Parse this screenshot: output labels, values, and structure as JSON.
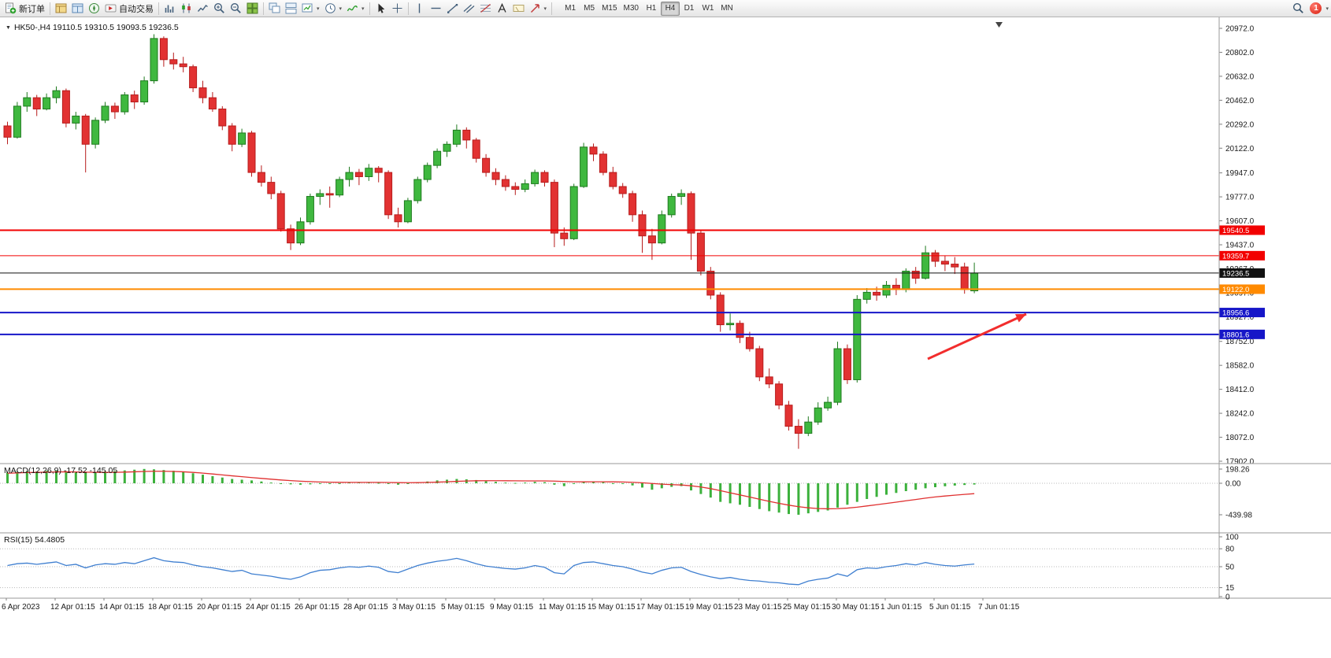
{
  "toolbar": {
    "items": [
      {
        "name": "new-order-button",
        "icon": "new-order",
        "label": "新订单"
      },
      {
        "sep": true
      },
      {
        "name": "market-watch-button",
        "icon": "market-watch"
      },
      {
        "name": "data-window-button",
        "icon": "data-window"
      },
      {
        "name": "navigator-button",
        "icon": "navigator"
      },
      {
        "name": "auto-trading-button",
        "icon": "auto-trading",
        "label": "自动交易"
      },
      {
        "sep": true
      },
      {
        "name": "bar-chart-button",
        "icon": "bar-chart"
      },
      {
        "name": "candlestick-chart-button",
        "icon": "candle-chart"
      },
      {
        "name": "line-chart-button",
        "icon": "line-chart"
      },
      {
        "name": "zoom-in-button",
        "icon": "zoom-in"
      },
      {
        "name": "zoom-out-button",
        "icon": "zoom-out"
      },
      {
        "name": "tile-windows-button",
        "icon": "tile-windows"
      },
      {
        "sep": true
      },
      {
        "name": "cascade-windows-button",
        "icon": "cascade"
      },
      {
        "name": "arrange-windows-button",
        "icon": "arrange"
      },
      {
        "name": "new-chart-button",
        "icon": "new-chart",
        "caret": true
      },
      {
        "name": "period-button",
        "icon": "clock",
        "caret": true
      },
      {
        "name": "indicators-button",
        "icon": "indicators",
        "caret": true
      },
      {
        "sep": true
      },
      {
        "name": "cursor-button",
        "icon": "cursor"
      },
      {
        "name": "crosshair-button",
        "icon": "crosshair"
      },
      {
        "sep": true
      },
      {
        "name": "vertical-line-button",
        "icon": "vertical-line"
      },
      {
        "name": "horizontal-line-button",
        "icon": "horizontal-line"
      },
      {
        "name": "trendline-button",
        "icon": "trendline"
      },
      {
        "name": "channel-button",
        "icon": "channel"
      },
      {
        "name": "fibonacci-button",
        "icon": "fibonacci"
      },
      {
        "name": "text-button",
        "icon": "text"
      },
      {
        "name": "text-label-button",
        "icon": "text-label"
      },
      {
        "name": "arrows-button",
        "icon": "arrow-tool",
        "caret": true
      },
      {
        "sep": true
      }
    ],
    "timeframes": [
      "M1",
      "M5",
      "M15",
      "M30",
      "H1",
      "H4",
      "D1",
      "W1",
      "MN"
    ],
    "active_timeframe": "H4",
    "notification_count": "1"
  },
  "chart": {
    "marker_glyph": "▼",
    "symbol_header": "HK50-,H4 19110.5 19310.5 19093.5 19236.5"
  },
  "indicators": {
    "macd": {
      "label": "MACD(12,26,9) -17.52 -145.05"
    },
    "rsi": {
      "label": "RSI(15) 54.4805"
    }
  },
  "chart_data": [
    {
      "type": "candlestick",
      "symbol": "HK50-",
      "timeframe": "H4",
      "last_ohlc": {
        "open": 19110.5,
        "high": 19310.5,
        "low": 19093.5,
        "close": 19236.5
      },
      "y_range": [
        17902,
        20972
      ],
      "y_ticks": [
        "20972.0",
        "20802.0",
        "20632.0",
        "20462.0",
        "20292.0",
        "20122.0",
        "19947.0",
        "19777.0",
        "19607.0",
        "19437.0",
        "19267.0",
        "19097.0",
        "18927.0",
        "18752.0",
        "18582.0",
        "18412.0",
        "18242.0",
        "18072.0",
        "17902.0"
      ],
      "x_labels": [
        "6 Apr 2023",
        "12 Apr 01:15",
        "14 Apr 01:15",
        "18 Apr 01:15",
        "20 Apr 01:15",
        "24 Apr 01:15",
        "26 Apr 01:15",
        "28 Apr 01:15",
        "3 May 01:15",
        "5 May 01:15",
        "9 May 01:15",
        "11 May 01:15",
        "15 May 01:15",
        "17 May 01:15",
        "19 May 01:15",
        "23 May 01:15",
        "25 May 01:15",
        "30 May 01:15",
        "1 Jun 01:15",
        "5 Jun 01:15",
        "7 Jun 01:15"
      ],
      "levels": [
        {
          "label": "19540.5",
          "price": 19540.5,
          "color": "#f20000",
          "width": 2
        },
        {
          "label": "19359.7",
          "price": 19359.7,
          "color": "#f20000",
          "width": 1
        },
        {
          "label": "19236.5",
          "price": 19236.5,
          "color": "#111111",
          "width": 1,
          "current": true
        },
        {
          "label": "19122.0",
          "price": 19122.0,
          "color": "#ff8a00",
          "width": 2
        },
        {
          "label": "18956.6",
          "price": 18956.6,
          "color": "#1616c8",
          "width": 2
        },
        {
          "label": "18801.6",
          "price": 18801.6,
          "color": "#1616c8",
          "width": 2
        }
      ],
      "arrow": {
        "from": [
          1178,
          434
        ],
        "to": [
          1303,
          377
        ],
        "color": "#f22d2d"
      },
      "ohlc": [
        [
          20280,
          20310,
          20150,
          20200
        ],
        [
          20200,
          20450,
          20190,
          20420
        ],
        [
          20420,
          20520,
          20380,
          20480
        ],
        [
          20480,
          20500,
          20350,
          20400
        ],
        [
          20400,
          20510,
          20390,
          20480
        ],
        [
          20480,
          20560,
          20440,
          20530
        ],
        [
          20530,
          20545,
          20270,
          20300
        ],
        [
          20300,
          20380,
          20255,
          20350
        ],
        [
          20350,
          20365,
          19950,
          20150
        ],
        [
          20150,
          20340,
          20120,
          20320
        ],
        [
          20320,
          20450,
          20300,
          20420
        ],
        [
          20420,
          20445,
          20330,
          20380
        ],
        [
          20380,
          20520,
          20360,
          20500
        ],
        [
          20500,
          20530,
          20400,
          20450
        ],
        [
          20450,
          20630,
          20430,
          20600
        ],
        [
          20600,
          20930,
          20580,
          20900
        ],
        [
          20900,
          20915,
          20700,
          20750
        ],
        [
          20750,
          20800,
          20680,
          20720
        ],
        [
          20720,
          20770,
          20660,
          20700
        ],
        [
          20700,
          20715,
          20520,
          20550
        ],
        [
          20550,
          20600,
          20440,
          20480
        ],
        [
          20480,
          20520,
          20380,
          20400
        ],
        [
          20400,
          20420,
          20250,
          20280
        ],
        [
          20280,
          20300,
          20100,
          20150
        ],
        [
          20150,
          20260,
          20130,
          20230
        ],
        [
          20230,
          20245,
          19920,
          19950
        ],
        [
          19950,
          20000,
          19850,
          19880
        ],
        [
          19880,
          19920,
          19760,
          19800
        ],
        [
          19800,
          19820,
          19530,
          19550
        ],
        [
          19550,
          19580,
          19400,
          19450
        ],
        [
          19450,
          19630,
          19435,
          19600
        ],
        [
          19600,
          19800,
          19580,
          19780
        ],
        [
          19780,
          19830,
          19720,
          19800
        ],
        [
          19800,
          19850,
          19700,
          19790
        ],
        [
          19790,
          19920,
          19775,
          19900
        ],
        [
          19900,
          19990,
          19850,
          19950
        ],
        [
          19950,
          19975,
          19860,
          19920
        ],
        [
          19920,
          20010,
          19890,
          19980
        ],
        [
          19980,
          19995,
          19880,
          19950
        ],
        [
          19950,
          19965,
          19620,
          19650
        ],
        [
          19650,
          19700,
          19560,
          19600
        ],
        [
          19600,
          19770,
          19590,
          19750
        ],
        [
          19750,
          19920,
          19730,
          19900
        ],
        [
          19900,
          20020,
          19880,
          20000
        ],
        [
          20000,
          20120,
          19980,
          20100
        ],
        [
          20100,
          20170,
          20060,
          20150
        ],
        [
          20150,
          20290,
          20130,
          20250
        ],
        [
          20250,
          20270,
          20120,
          20180
        ],
        [
          20180,
          20195,
          20020,
          20050
        ],
        [
          20050,
          20080,
          19920,
          19950
        ],
        [
          19950,
          19980,
          19860,
          19900
        ],
        [
          19900,
          19930,
          19820,
          19850
        ],
        [
          19850,
          19880,
          19790,
          19830
        ],
        [
          19830,
          19900,
          19810,
          19870
        ],
        [
          19870,
          19970,
          19850,
          19950
        ],
        [
          19950,
          19965,
          19850,
          19880
        ],
        [
          19880,
          19900,
          19420,
          19520
        ],
        [
          19520,
          19560,
          19430,
          19480
        ],
        [
          19480,
          19870,
          19470,
          19850
        ],
        [
          19850,
          20160,
          19840,
          20130
        ],
        [
          20130,
          20155,
          20030,
          20080
        ],
        [
          20080,
          20100,
          19930,
          19950
        ],
        [
          19950,
          19990,
          19830,
          19850
        ],
        [
          19850,
          19875,
          19770,
          19800
        ],
        [
          19800,
          19820,
          19600,
          19650
        ],
        [
          19650,
          19680,
          19380,
          19500
        ],
        [
          19500,
          19550,
          19330,
          19450
        ],
        [
          19450,
          19680,
          19440,
          19650
        ],
        [
          19650,
          19800,
          19630,
          19780
        ],
        [
          19780,
          19830,
          19720,
          19800
        ],
        [
          19800,
          19815,
          19330,
          19520
        ],
        [
          19520,
          19540,
          19220,
          19250
        ],
        [
          19250,
          19280,
          19050,
          19080
        ],
        [
          19080,
          19100,
          18820,
          18870
        ],
        [
          18870,
          18950,
          18830,
          18880
        ],
        [
          18880,
          18900,
          18740,
          18780
        ],
        [
          18780,
          18820,
          18680,
          18700
        ],
        [
          18700,
          18720,
          18470,
          18500
        ],
        [
          18500,
          18560,
          18420,
          18450
        ],
        [
          18450,
          18470,
          18270,
          18300
        ],
        [
          18300,
          18330,
          18120,
          18150
        ],
        [
          18150,
          18200,
          17990,
          18100
        ],
        [
          18100,
          18220,
          18080,
          18180
        ],
        [
          18180,
          18320,
          18160,
          18280
        ],
        [
          18280,
          18360,
          18260,
          18320
        ],
        [
          18320,
          18750,
          18300,
          18700
        ],
        [
          18700,
          18730,
          18450,
          18480
        ],
        [
          18480,
          19080,
          18460,
          19050
        ],
        [
          19050,
          19130,
          19020,
          19100
        ],
        [
          19100,
          19140,
          19040,
          19080
        ],
        [
          19080,
          19180,
          19060,
          19150
        ],
        [
          19150,
          19200,
          19080,
          19120
        ],
        [
          19120,
          19270,
          19100,
          19250
        ],
        [
          19250,
          19280,
          19160,
          19200
        ],
        [
          19200,
          19430,
          19190,
          19380
        ],
        [
          19380,
          19400,
          19280,
          19320
        ],
        [
          19320,
          19360,
          19250,
          19300
        ],
        [
          19300,
          19350,
          19230,
          19280
        ],
        [
          19280,
          19310,
          19090,
          19120
        ],
        [
          19110.5,
          19310.5,
          19093.5,
          19236.5
        ]
      ]
    },
    {
      "type": "bar",
      "name": "MACD(12,26,9)",
      "current_values": [
        "-17.52",
        "-145.05"
      ],
      "y_labels": [
        {
          "text": "198.26",
          "value": 198.26
        },
        {
          "text": "0.00",
          "value": 0
        },
        {
          "text": "-439.98",
          "value": -439.98
        }
      ],
      "histogram": [
        150,
        160,
        170,
        165,
        175,
        180,
        170,
        160,
        150,
        155,
        165,
        170,
        180,
        190,
        200,
        195,
        185,
        175,
        160,
        140,
        120,
        100,
        80,
        60,
        50,
        40,
        25,
        10,
        -5,
        -15,
        -20,
        -15,
        -10,
        -5,
        0,
        10,
        15,
        10,
        5,
        -10,
        -20,
        -5,
        10,
        25,
        40,
        50,
        60,
        55,
        45,
        30,
        20,
        10,
        5,
        10,
        20,
        15,
        -20,
        -40,
        -10,
        20,
        25,
        15,
        0,
        -10,
        -30,
        -60,
        -90,
        -70,
        -50,
        -40,
        -100,
        -150,
        -200,
        -260,
        -280,
        -300,
        -330,
        -360,
        -390,
        -410,
        -430,
        -440,
        -420,
        -400,
        -380,
        -340,
        -300,
        -260,
        -220,
        -190,
        -160,
        -135,
        -110,
        -90,
        -70,
        -55,
        -42,
        -32,
        -24,
        -17.52
      ],
      "signal": [
        140,
        145,
        150,
        152,
        155,
        158,
        160,
        158,
        155,
        153,
        152,
        153,
        156,
        160,
        165,
        168,
        168,
        165,
        160,
        152,
        142,
        130,
        117,
        104,
        92,
        80,
        68,
        57,
        46,
        37,
        29,
        23,
        18,
        15,
        13,
        12,
        12,
        12,
        12,
        11,
        9,
        8,
        9,
        12,
        16,
        21,
        27,
        32,
        35,
        36,
        36,
        35,
        34,
        33,
        33,
        33,
        30,
        25,
        21,
        20,
        21,
        21,
        20,
        18,
        14,
        7,
        -3,
        -12,
        -19,
        -24,
        -35,
        -52,
        -75,
        -103,
        -133,
        -163,
        -193,
        -223,
        -253,
        -281,
        -306,
        -327,
        -343,
        -353,
        -357,
        -355,
        -347,
        -334,
        -317,
        -300,
        -282,
        -264,
        -245,
        -227,
        -208,
        -191,
        -178,
        -166,
        -155,
        -145.05
      ]
    },
    {
      "type": "line",
      "name": "RSI(15)",
      "current_value": 54.4805,
      "level_lines": [
        80,
        50,
        15
      ],
      "y_labels": [
        {
          "text": "100",
          "value": 100
        },
        {
          "text": "80",
          "value": 80
        },
        {
          "text": "50",
          "value": 50
        },
        {
          "text": "15",
          "value": 15
        },
        {
          "text": "0",
          "value": 0
        }
      ],
      "values": [
        52,
        55,
        56,
        54,
        56,
        58,
        52,
        54,
        48,
        53,
        55,
        54,
        57,
        55,
        60,
        65,
        60,
        58,
        57,
        53,
        50,
        48,
        45,
        42,
        44,
        38,
        36,
        34,
        31,
        29,
        33,
        40,
        44,
        45,
        48,
        50,
        49,
        51,
        49,
        42,
        40,
        46,
        52,
        56,
        59,
        61,
        64,
        60,
        55,
        51,
        49,
        47,
        46,
        48,
        52,
        49,
        40,
        38,
        52,
        57,
        58,
        55,
        52,
        50,
        46,
        41,
        38,
        44,
        48,
        49,
        42,
        37,
        33,
        30,
        32,
        29,
        27,
        26,
        24,
        23,
        21,
        20,
        26,
        29,
        31,
        38,
        34,
        45,
        48,
        47,
        50,
        52,
        55,
        53,
        57,
        54,
        52,
        51,
        53,
        54.48
      ]
    }
  ]
}
